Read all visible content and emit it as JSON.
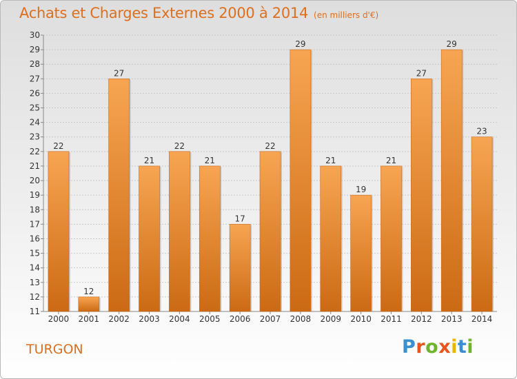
{
  "chart_data": {
    "type": "bar",
    "title": "Achats et Charges Externes 2000 à 2014",
    "unit_note": "(en milliers d'€)",
    "categories": [
      "2000",
      "2001",
      "2002",
      "2003",
      "2004",
      "2005",
      "2006",
      "2007",
      "2008",
      "2009",
      "2010",
      "2011",
      "2012",
      "2013",
      "2014"
    ],
    "values": [
      22,
      12,
      27,
      21,
      22,
      21,
      17,
      22,
      29,
      21,
      19,
      21,
      27,
      29,
      23
    ],
    "ylim": [
      11,
      30
    ],
    "yticks": [
      11,
      12,
      13,
      14,
      15,
      16,
      17,
      18,
      19,
      20,
      21,
      22,
      23,
      24,
      25,
      26,
      27,
      28,
      29,
      30
    ],
    "grid": true,
    "colors": {
      "bar_top": "#f7a552",
      "bar_bottom": "#cc6a14",
      "text": "#dd6f1e"
    }
  },
  "footer": {
    "commune": "TURGON",
    "logo_letters": [
      "P",
      "r",
      "o",
      "x",
      "i",
      "t",
      "i"
    ],
    "logo_colors": [
      "#3a8fd0",
      "#e8541c",
      "#6fb42c",
      "#e8541c",
      "#f0b400",
      "#3a8fd0",
      "#6fb42c"
    ]
  }
}
